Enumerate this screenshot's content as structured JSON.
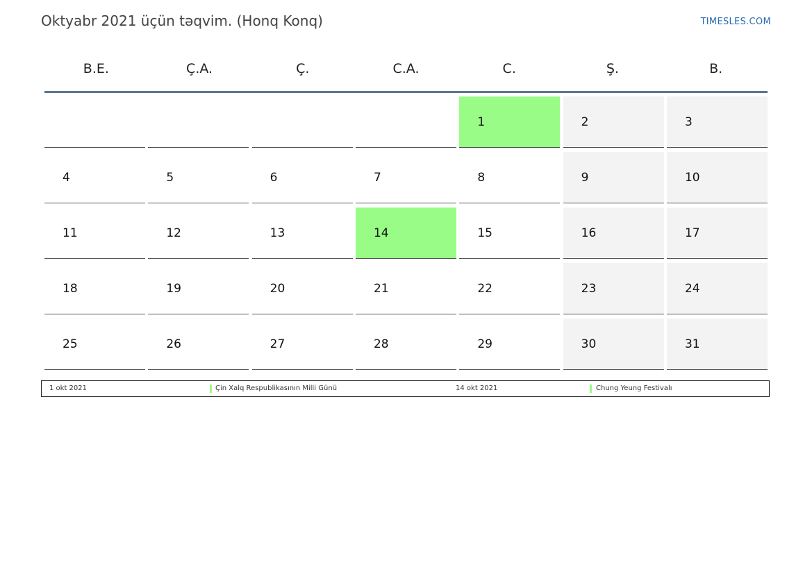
{
  "header": {
    "title": "Oktyabr 2021 üçün təqvim. (Honq Konq)",
    "site": "TIMESLES.COM"
  },
  "weekdays": [
    "B.E.",
    "Ç.A.",
    "Ç.",
    "C.A.",
    "C.",
    "Ş.",
    "B."
  ],
  "days": [
    {
      "n": "",
      "t": "empty"
    },
    {
      "n": "",
      "t": "empty"
    },
    {
      "n": "",
      "t": "empty"
    },
    {
      "n": "",
      "t": "empty"
    },
    {
      "n": "1",
      "t": "holiday"
    },
    {
      "n": "2",
      "t": "weekend"
    },
    {
      "n": "3",
      "t": "weekend"
    },
    {
      "n": "4",
      "t": "normal"
    },
    {
      "n": "5",
      "t": "normal"
    },
    {
      "n": "6",
      "t": "normal"
    },
    {
      "n": "7",
      "t": "normal"
    },
    {
      "n": "8",
      "t": "normal"
    },
    {
      "n": "9",
      "t": "weekend"
    },
    {
      "n": "10",
      "t": "weekend"
    },
    {
      "n": "11",
      "t": "normal"
    },
    {
      "n": "12",
      "t": "normal"
    },
    {
      "n": "13",
      "t": "normal"
    },
    {
      "n": "14",
      "t": "holiday"
    },
    {
      "n": "15",
      "t": "normal"
    },
    {
      "n": "16",
      "t": "weekend"
    },
    {
      "n": "17",
      "t": "weekend"
    },
    {
      "n": "18",
      "t": "normal"
    },
    {
      "n": "19",
      "t": "normal"
    },
    {
      "n": "20",
      "t": "normal"
    },
    {
      "n": "21",
      "t": "normal"
    },
    {
      "n": "22",
      "t": "normal"
    },
    {
      "n": "23",
      "t": "weekend"
    },
    {
      "n": "24",
      "t": "weekend"
    },
    {
      "n": "25",
      "t": "normal"
    },
    {
      "n": "26",
      "t": "normal"
    },
    {
      "n": "27",
      "t": "normal"
    },
    {
      "n": "28",
      "t": "normal"
    },
    {
      "n": "29",
      "t": "normal"
    },
    {
      "n": "30",
      "t": "weekend"
    },
    {
      "n": "31",
      "t": "weekend"
    }
  ],
  "legend": {
    "h1_date": "1 okt 2021",
    "h1_name": "Çin Xalq Respublikasının Milli Günü",
    "h2_date": "14 okt 2021",
    "h2_name": "Chung Yeung Festivalı"
  },
  "colors": {
    "holiday": "#99fc86",
    "weekend": "#f3f3f3",
    "header_rule": "#5b7592",
    "link": "#2b6cb0"
  }
}
